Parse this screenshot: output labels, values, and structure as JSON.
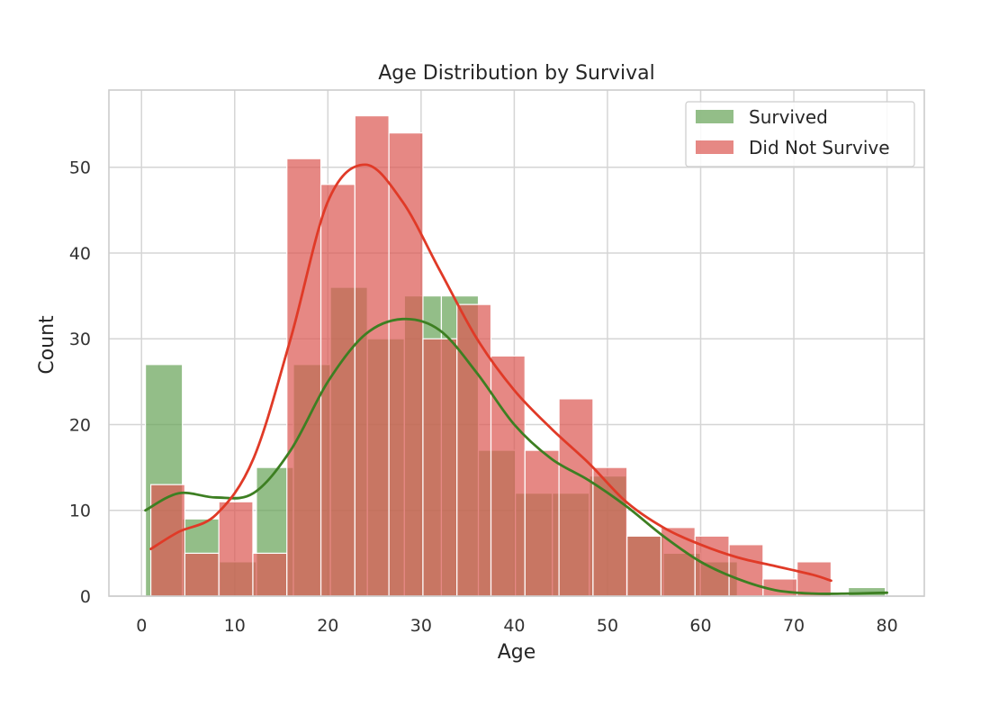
{
  "chart_data": {
    "type": "histogram",
    "title": "Age Distribution by Survival",
    "xlabel": "Age",
    "ylabel": "Count",
    "xlim": [
      -3.5,
      84
    ],
    "ylim": [
      0,
      59
    ],
    "xticks": [
      0,
      10,
      20,
      30,
      40,
      50,
      60,
      70,
      80
    ],
    "yticks": [
      0,
      10,
      20,
      30,
      40,
      50
    ],
    "grid": true,
    "legend_position": "upper right",
    "series": [
      {
        "name": "Survived",
        "color": "#6aa55a",
        "kde_color": "#3d7f22",
        "bins": [
          {
            "x0": 0.42,
            "x1": 4.39,
            "count": 27
          },
          {
            "x0": 4.39,
            "x1": 8.36,
            "count": 9
          },
          {
            "x0": 8.36,
            "x1": 12.33,
            "count": 4
          },
          {
            "x0": 12.33,
            "x1": 16.3,
            "count": 15
          },
          {
            "x0": 16.3,
            "x1": 20.27,
            "count": 27
          },
          {
            "x0": 20.27,
            "x1": 24.24,
            "count": 36
          },
          {
            "x0": 24.24,
            "x1": 28.21,
            "count": 30
          },
          {
            "x0": 28.21,
            "x1": 32.18,
            "count": 35
          },
          {
            "x0": 32.18,
            "x1": 36.15,
            "count": 35
          },
          {
            "x0": 36.15,
            "x1": 40.12,
            "count": 17
          },
          {
            "x0": 40.12,
            "x1": 44.09,
            "count": 12
          },
          {
            "x0": 44.09,
            "x1": 48.06,
            "count": 12
          },
          {
            "x0": 48.06,
            "x1": 52.03,
            "count": 14
          },
          {
            "x0": 52.03,
            "x1": 56.0,
            "count": 7
          },
          {
            "x0": 56.0,
            "x1": 59.97,
            "count": 5
          },
          {
            "x0": 59.97,
            "x1": 63.94,
            "count": 4
          },
          {
            "x0": 63.94,
            "x1": 67.91,
            "count": 0
          },
          {
            "x0": 67.91,
            "x1": 71.88,
            "count": 0
          },
          {
            "x0": 71.88,
            "x1": 75.85,
            "count": 0
          },
          {
            "x0": 75.85,
            "x1": 79.82,
            "count": 1
          }
        ],
        "kde": {
          "x": [
            0.42,
            4,
            8,
            12,
            16,
            20,
            24,
            28,
            32,
            36,
            40,
            44,
            48,
            52,
            56,
            60,
            64,
            68,
            72,
            76,
            80
          ],
          "y": [
            10,
            12,
            11.5,
            12,
            17,
            25,
            30.5,
            32.3,
            31,
            26,
            20,
            16,
            13.5,
            10.5,
            7,
            4,
            2,
            0.7,
            0.3,
            0.3,
            0.4
          ]
        }
      },
      {
        "name": "Did Not Survive",
        "color": "#dd5a55",
        "kde_color": "#e03a27",
        "bins": [
          {
            "x0": 1.0,
            "x1": 4.65,
            "count": 13
          },
          {
            "x0": 4.65,
            "x1": 8.3,
            "count": 5
          },
          {
            "x0": 8.3,
            "x1": 11.95,
            "count": 11
          },
          {
            "x0": 11.95,
            "x1": 15.6,
            "count": 5
          },
          {
            "x0": 15.6,
            "x1": 19.25,
            "count": 51
          },
          {
            "x0": 19.25,
            "x1": 22.9,
            "count": 48
          },
          {
            "x0": 22.9,
            "x1": 26.55,
            "count": 56
          },
          {
            "x0": 26.55,
            "x1": 30.2,
            "count": 54
          },
          {
            "x0": 30.2,
            "x1": 33.85,
            "count": 30
          },
          {
            "x0": 33.85,
            "x1": 37.5,
            "count": 34
          },
          {
            "x0": 37.5,
            "x1": 41.15,
            "count": 28
          },
          {
            "x0": 41.15,
            "x1": 44.8,
            "count": 17
          },
          {
            "x0": 44.8,
            "x1": 48.45,
            "count": 23
          },
          {
            "x0": 48.45,
            "x1": 52.1,
            "count": 15
          },
          {
            "x0": 52.1,
            "x1": 55.75,
            "count": 7
          },
          {
            "x0": 55.75,
            "x1": 59.4,
            "count": 8
          },
          {
            "x0": 59.4,
            "x1": 63.05,
            "count": 7
          },
          {
            "x0": 63.05,
            "x1": 66.7,
            "count": 6
          },
          {
            "x0": 66.7,
            "x1": 70.35,
            "count": 2
          },
          {
            "x0": 70.35,
            "x1": 74.0,
            "count": 4
          }
        ],
        "kde": {
          "x": [
            1,
            4,
            8,
            12,
            16,
            20,
            24,
            28,
            32,
            36,
            40,
            44,
            48,
            52,
            56,
            60,
            64,
            68,
            72,
            74
          ],
          "y": [
            5.5,
            7.5,
            9.5,
            16,
            30,
            46,
            50.3,
            46,
            38,
            30,
            24,
            19.5,
            15.5,
            11,
            8,
            6,
            4.5,
            3.5,
            2.5,
            1.8
          ]
        }
      }
    ]
  }
}
